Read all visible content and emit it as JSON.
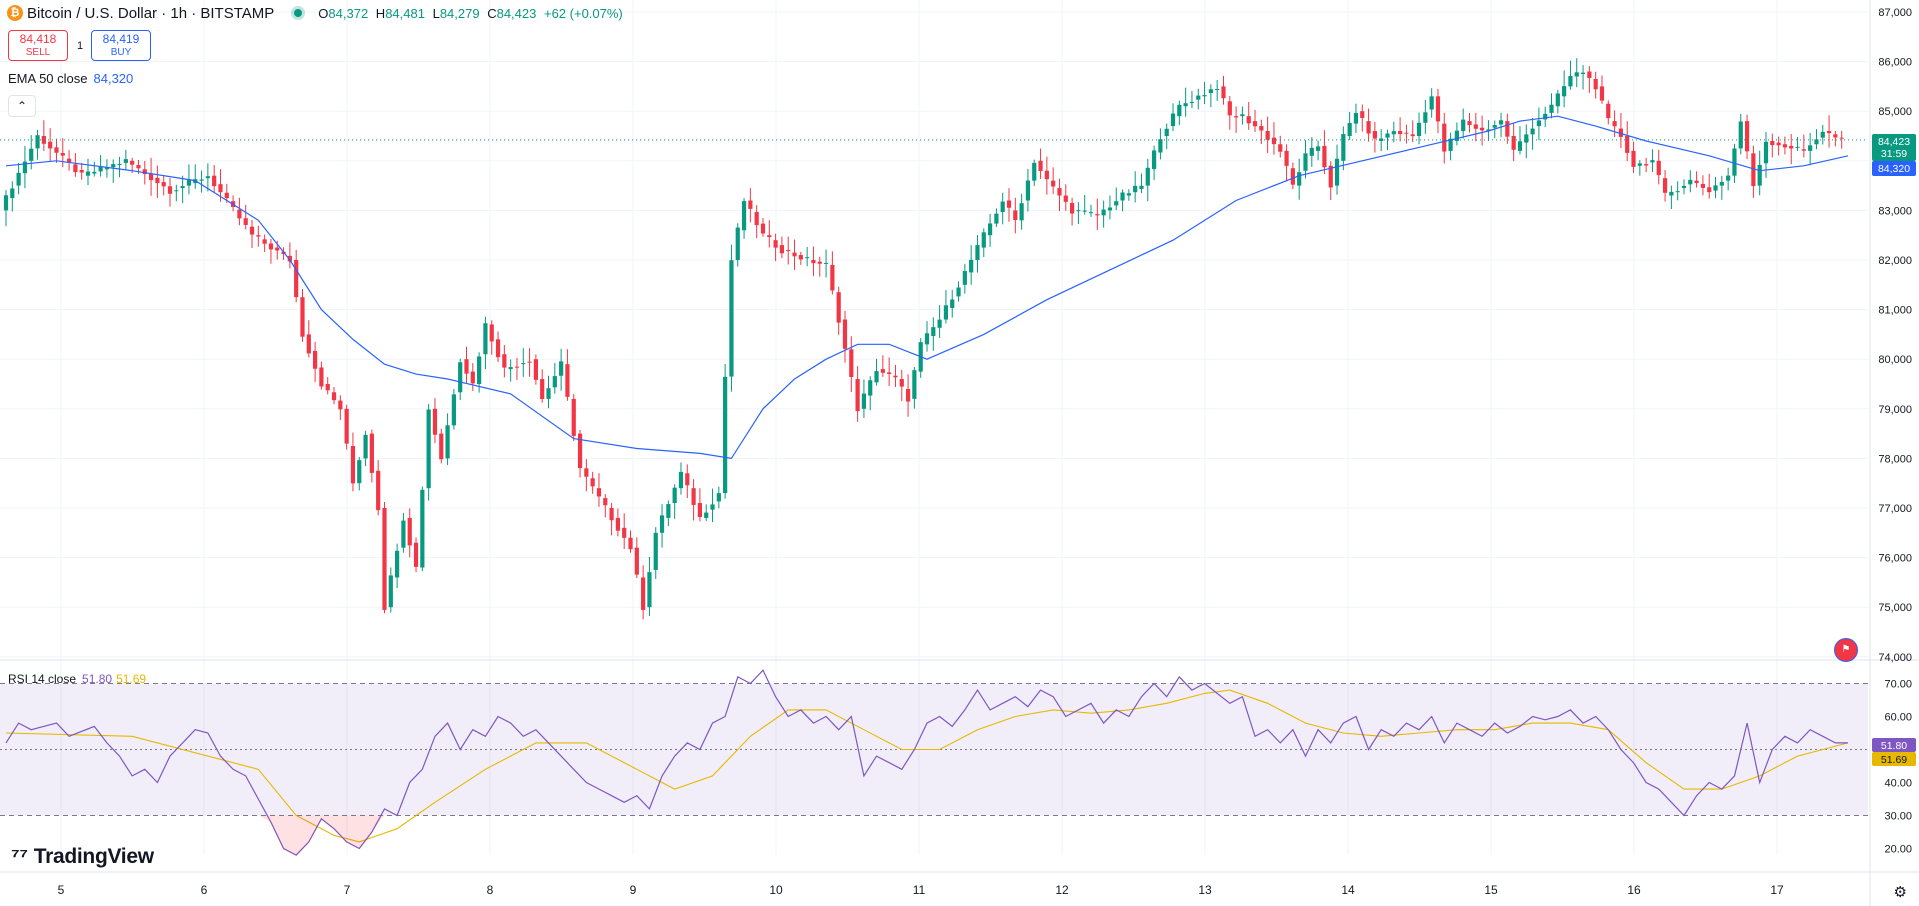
{
  "header": {
    "symbol_icon": "bitcoin-icon",
    "title": "Bitcoin / U.S. Dollar · 1h · BITSTAMP",
    "o_key": "O",
    "o_val": "84,372",
    "h_key": "H",
    "h_val": "84,481",
    "l_key": "L",
    "l_val": "84,279",
    "c_key": "C",
    "c_val": "84,423",
    "change": "+62 (+0.07%)"
  },
  "trade": {
    "sell_price": "84,418",
    "sell_label": "SELL",
    "spread": "1",
    "buy_price": "84,419",
    "buy_label": "BUY"
  },
  "indicators": {
    "ema_label": "EMA 50 close",
    "ema_value": "84,320",
    "rsi_label": "RSI 14 close",
    "rsi_value": "51.80",
    "rsi_ma_value": "51.69"
  },
  "branding": {
    "logo_text": "TradingView",
    "logo_icon": "tradingview-logo-icon"
  },
  "colors": {
    "up": "#089981",
    "down": "#f23645",
    "ema": "#2962ff",
    "rsi": "#7e57c2",
    "rsi_ma": "#e6b800"
  },
  "chart_data": {
    "type": "candlestick",
    "y_axis_labels": [
      "87,000",
      "86,000",
      "85,000",
      "84,000",
      "83,000",
      "82,000",
      "81,000",
      "80,000",
      "79,000",
      "78,000",
      "77,000",
      "76,000",
      "75,000",
      "74,000"
    ],
    "ylim": [
      74000,
      87000
    ],
    "x_tick_labels": [
      "5",
      "6",
      "7",
      "8",
      "9",
      "10",
      "11",
      "12",
      "13",
      "14",
      "15",
      "16",
      "17"
    ],
    "price_badges": {
      "last": "84,423",
      "countdown": "31:59",
      "ema": "84,320"
    },
    "rsi_axis_labels": [
      "70.00",
      "60.00",
      "50.00",
      "40.00",
      "30.00",
      "20.00"
    ],
    "rsi_ylim": [
      15,
      75
    ],
    "rsi_badges": {
      "rsi": "51.80",
      "rsi_ma": "51.69"
    },
    "price_path": [
      [
        0,
        83000
      ],
      [
        6,
        84500
      ],
      [
        13,
        83700
      ],
      [
        20,
        84000
      ],
      [
        27,
        83400
      ],
      [
        33,
        83700
      ],
      [
        40,
        82500
      ],
      [
        46,
        82000
      ],
      [
        48,
        80500
      ],
      [
        51,
        79500
      ],
      [
        54,
        79000
      ],
      [
        56,
        77500
      ],
      [
        58,
        78500
      ],
      [
        60,
        77000
      ],
      [
        61,
        75000
      ],
      [
        64,
        76800
      ],
      [
        66,
        75800
      ],
      [
        68,
        79000
      ],
      [
        70,
        78000
      ],
      [
        73,
        80000
      ],
      [
        75,
        79500
      ],
      [
        77,
        80700
      ],
      [
        80,
        79800
      ],
      [
        84,
        80000
      ],
      [
        86,
        79200
      ],
      [
        89,
        79900
      ],
      [
        92,
        77800
      ],
      [
        96,
        77000
      ],
      [
        100,
        76200
      ],
      [
        102,
        75000
      ],
      [
        104,
        76500
      ],
      [
        108,
        77700
      ],
      [
        111,
        76800
      ],
      [
        114,
        77300
      ],
      [
        116,
        82000
      ],
      [
        118,
        83200
      ],
      [
        121,
        82500
      ],
      [
        124,
        82200
      ],
      [
        128,
        82000
      ],
      [
        131,
        81900
      ],
      [
        133,
        80800
      ],
      [
        136,
        79000
      ],
      [
        139,
        79800
      ],
      [
        142,
        79600
      ],
      [
        144,
        79200
      ],
      [
        146,
        80300
      ],
      [
        149,
        80800
      ],
      [
        152,
        81500
      ],
      [
        156,
        82500
      ],
      [
        159,
        83200
      ],
      [
        161,
        82800
      ],
      [
        164,
        84000
      ],
      [
        166,
        83600
      ],
      [
        170,
        83000
      ],
      [
        174,
        82900
      ],
      [
        178,
        83300
      ],
      [
        181,
        83500
      ],
      [
        184,
        84500
      ],
      [
        187,
        85100
      ],
      [
        190,
        85300
      ],
      [
        193,
        85500
      ],
      [
        195,
        84900
      ],
      [
        197,
        84900
      ],
      [
        200,
        84600
      ],
      [
        203,
        84200
      ],
      [
        205,
        83500
      ],
      [
        207,
        84100
      ],
      [
        209,
        84300
      ],
      [
        211,
        83500
      ],
      [
        213,
        84500
      ],
      [
        215,
        85000
      ],
      [
        218,
        84400
      ],
      [
        221,
        84600
      ],
      [
        224,
        84500
      ],
      [
        227,
        85300
      ],
      [
        229,
        84200
      ],
      [
        232,
        84800
      ],
      [
        235,
        84600
      ],
      [
        238,
        84800
      ],
      [
        240,
        84200
      ],
      [
        243,
        84700
      ],
      [
        246,
        85100
      ],
      [
        249,
        85700
      ],
      [
        251,
        85800
      ],
      [
        253,
        85500
      ],
      [
        255,
        84800
      ],
      [
        257,
        84500
      ],
      [
        259,
        83900
      ],
      [
        262,
        84000
      ],
      [
        264,
        83300
      ],
      [
        268,
        83600
      ],
      [
        271,
        83400
      ],
      [
        274,
        83700
      ],
      [
        276,
        84800
      ],
      [
        278,
        83500
      ],
      [
        280,
        84400
      ],
      [
        283,
        84300
      ],
      [
        286,
        84200
      ],
      [
        289,
        84600
      ],
      [
        292,
        84400
      ]
    ],
    "ema_path": [
      [
        0,
        83900
      ],
      [
        8,
        84000
      ],
      [
        20,
        83800
      ],
      [
        30,
        83600
      ],
      [
        40,
        82800
      ],
      [
        45,
        82000
      ],
      [
        50,
        81000
      ],
      [
        55,
        80400
      ],
      [
        60,
        79900
      ],
      [
        65,
        79700
      ],
      [
        70,
        79600
      ],
      [
        80,
        79300
      ],
      [
        90,
        78400
      ],
      [
        100,
        78200
      ],
      [
        110,
        78100
      ],
      [
        115,
        78000
      ],
      [
        120,
        79000
      ],
      [
        125,
        79600
      ],
      [
        130,
        80000
      ],
      [
        135,
        80300
      ],
      [
        140,
        80300
      ],
      [
        146,
        80000
      ],
      [
        155,
        80500
      ],
      [
        165,
        81200
      ],
      [
        175,
        81800
      ],
      [
        185,
        82400
      ],
      [
        195,
        83200
      ],
      [
        205,
        83700
      ],
      [
        215,
        84000
      ],
      [
        225,
        84300
      ],
      [
        235,
        84600
      ],
      [
        240,
        84800
      ],
      [
        246,
        84900
      ],
      [
        252,
        84700
      ],
      [
        260,
        84400
      ],
      [
        270,
        84100
      ],
      [
        278,
        83800
      ],
      [
        285,
        83900
      ],
      [
        292,
        84100
      ]
    ],
    "rsi_path": [
      [
        0,
        52
      ],
      [
        2,
        58
      ],
      [
        4,
        56
      ],
      [
        8,
        58
      ],
      [
        10,
        54
      ],
      [
        14,
        57
      ],
      [
        16,
        52
      ],
      [
        18,
        48
      ],
      [
        20,
        42
      ],
      [
        22,
        44
      ],
      [
        24,
        40
      ],
      [
        26,
        48
      ],
      [
        28,
        52
      ],
      [
        30,
        56
      ],
      [
        32,
        55
      ],
      [
        34,
        48
      ],
      [
        36,
        44
      ],
      [
        38,
        42
      ],
      [
        40,
        35
      ],
      [
        42,
        28
      ],
      [
        44,
        20
      ],
      [
        46,
        18
      ],
      [
        48,
        22
      ],
      [
        50,
        29
      ],
      [
        52,
        26
      ],
      [
        54,
        22
      ],
      [
        56,
        20
      ],
      [
        58,
        25
      ],
      [
        60,
        32
      ],
      [
        62,
        30
      ],
      [
        64,
        40
      ],
      [
        66,
        44
      ],
      [
        68,
        54
      ],
      [
        70,
        58
      ],
      [
        72,
        50
      ],
      [
        74,
        56
      ],
      [
        76,
        54
      ],
      [
        78,
        60
      ],
      [
        80,
        58
      ],
      [
        82,
        54
      ],
      [
        84,
        56
      ],
      [
        86,
        52
      ],
      [
        88,
        48
      ],
      [
        90,
        44
      ],
      [
        92,
        40
      ],
      [
        94,
        38
      ],
      [
        96,
        36
      ],
      [
        98,
        34
      ],
      [
        100,
        36
      ],
      [
        102,
        32
      ],
      [
        104,
        42
      ],
      [
        106,
        48
      ],
      [
        108,
        52
      ],
      [
        110,
        50
      ],
      [
        112,
        58
      ],
      [
        114,
        60
      ],
      [
        116,
        72
      ],
      [
        118,
        70
      ],
      [
        120,
        74
      ],
      [
        122,
        66
      ],
      [
        124,
        60
      ],
      [
        126,
        62
      ],
      [
        128,
        58
      ],
      [
        130,
        60
      ],
      [
        132,
        56
      ],
      [
        134,
        60
      ],
      [
        136,
        42
      ],
      [
        138,
        48
      ],
      [
        140,
        46
      ],
      [
        142,
        44
      ],
      [
        144,
        50
      ],
      [
        146,
        58
      ],
      [
        148,
        60
      ],
      [
        150,
        57
      ],
      [
        152,
        62
      ],
      [
        154,
        68
      ],
      [
        156,
        62
      ],
      [
        158,
        64
      ],
      [
        160,
        66
      ],
      [
        162,
        63
      ],
      [
        164,
        68
      ],
      [
        166,
        66
      ],
      [
        168,
        60
      ],
      [
        170,
        62
      ],
      [
        172,
        64
      ],
      [
        174,
        58
      ],
      [
        176,
        62
      ],
      [
        178,
        60
      ],
      [
        180,
        66
      ],
      [
        182,
        70
      ],
      [
        184,
        66
      ],
      [
        186,
        72
      ],
      [
        188,
        68
      ],
      [
        190,
        70
      ],
      [
        192,
        67
      ],
      [
        194,
        64
      ],
      [
        196,
        66
      ],
      [
        198,
        54
      ],
      [
        200,
        56
      ],
      [
        202,
        52
      ],
      [
        204,
        56
      ],
      [
        206,
        48
      ],
      [
        208,
        56
      ],
      [
        210,
        52
      ],
      [
        212,
        58
      ],
      [
        214,
        60
      ],
      [
        216,
        50
      ],
      [
        218,
        56
      ],
      [
        220,
        54
      ],
      [
        222,
        58
      ],
      [
        224,
        56
      ],
      [
        226,
        60
      ],
      [
        228,
        52
      ],
      [
        230,
        58
      ],
      [
        232,
        56
      ],
      [
        234,
        54
      ],
      [
        236,
        58
      ],
      [
        238,
        55
      ],
      [
        240,
        57
      ],
      [
        242,
        60
      ],
      [
        244,
        59
      ],
      [
        246,
        60
      ],
      [
        248,
        62
      ],
      [
        250,
        58
      ],
      [
        252,
        60
      ],
      [
        254,
        56
      ],
      [
        256,
        50
      ],
      [
        258,
        46
      ],
      [
        260,
        40
      ],
      [
        262,
        38
      ],
      [
        264,
        34
      ],
      [
        266,
        30
      ],
      [
        268,
        36
      ],
      [
        270,
        40
      ],
      [
        272,
        38
      ],
      [
        274,
        42
      ],
      [
        276,
        58
      ],
      [
        278,
        40
      ],
      [
        280,
        50
      ],
      [
        282,
        54
      ],
      [
        284,
        52
      ],
      [
        286,
        56
      ],
      [
        288,
        54
      ],
      [
        290,
        52
      ],
      [
        292,
        52
      ]
    ],
    "rsi_ma_path": [
      [
        0,
        55
      ],
      [
        20,
        54
      ],
      [
        40,
        44
      ],
      [
        46,
        30
      ],
      [
        52,
        24
      ],
      [
        56,
        22
      ],
      [
        62,
        26
      ],
      [
        68,
        34
      ],
      [
        76,
        44
      ],
      [
        84,
        52
      ],
      [
        92,
        52
      ],
      [
        100,
        44
      ],
      [
        106,
        38
      ],
      [
        112,
        42
      ],
      [
        118,
        54
      ],
      [
        124,
        62
      ],
      [
        130,
        62
      ],
      [
        136,
        56
      ],
      [
        142,
        50
      ],
      [
        148,
        50
      ],
      [
        154,
        56
      ],
      [
        160,
        60
      ],
      [
        166,
        62
      ],
      [
        172,
        61
      ],
      [
        178,
        62
      ],
      [
        184,
        64
      ],
      [
        190,
        67
      ],
      [
        194,
        68
      ],
      [
        200,
        64
      ],
      [
        206,
        58
      ],
      [
        212,
        55
      ],
      [
        218,
        54
      ],
      [
        224,
        55
      ],
      [
        230,
        56
      ],
      [
        236,
        56
      ],
      [
        242,
        58
      ],
      [
        248,
        58
      ],
      [
        254,
        56
      ],
      [
        260,
        46
      ],
      [
        266,
        38
      ],
      [
        272,
        38
      ],
      [
        278,
        42
      ],
      [
        284,
        48
      ],
      [
        292,
        52
      ]
    ]
  }
}
